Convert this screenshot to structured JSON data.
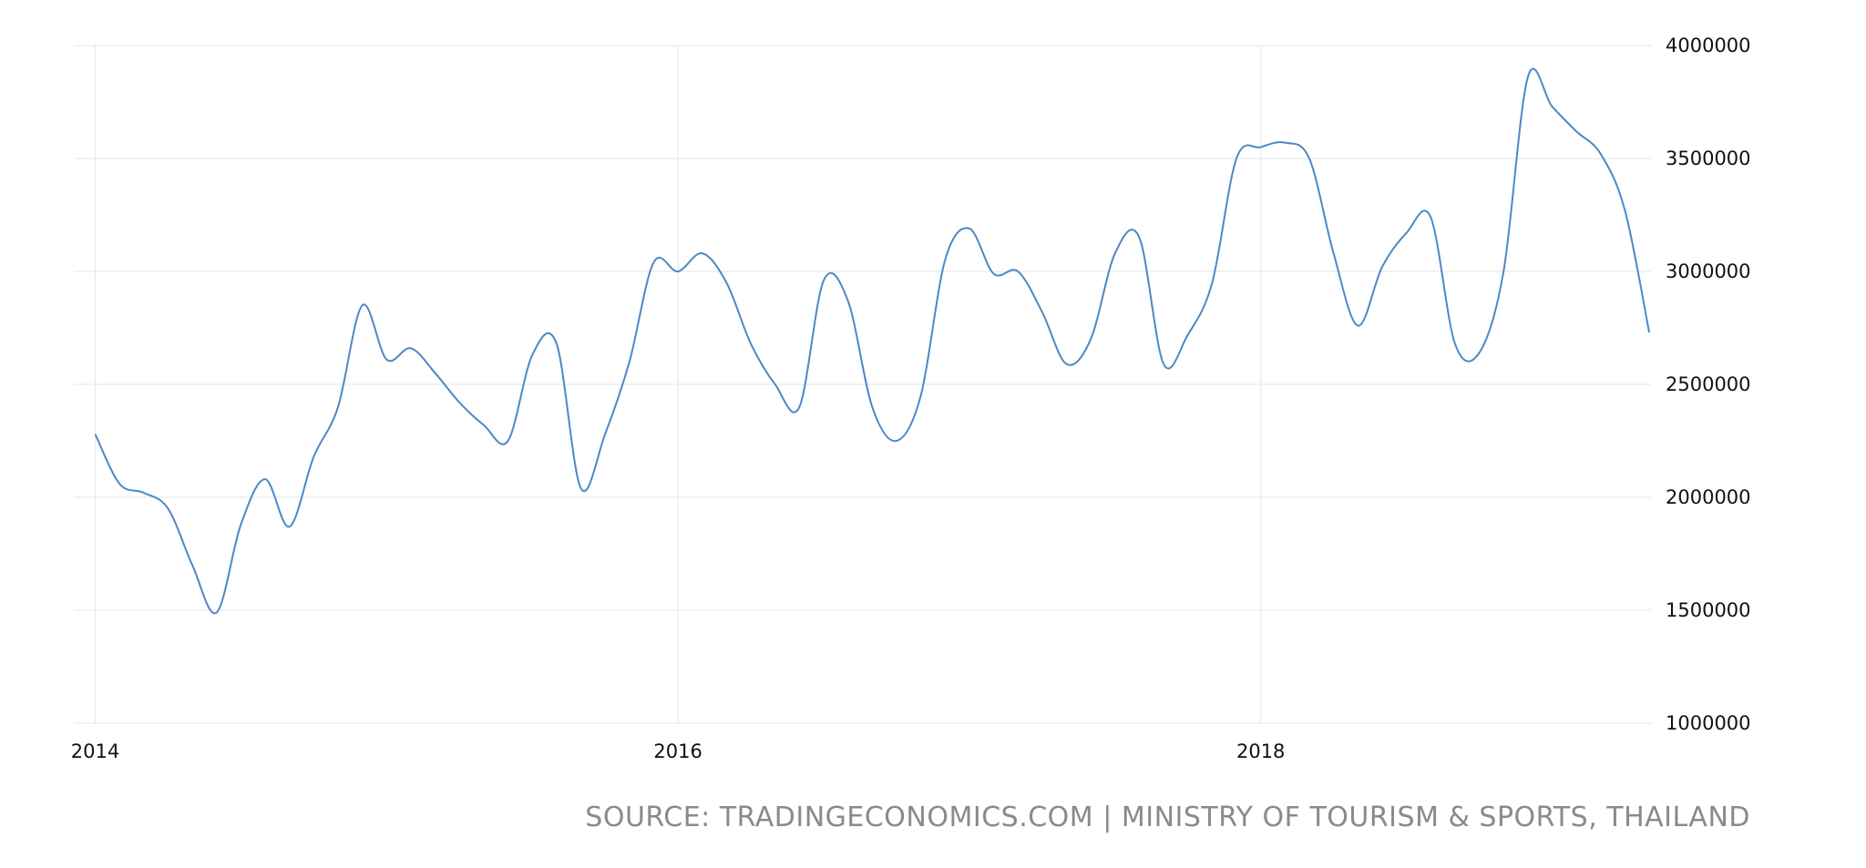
{
  "chart_data": {
    "type": "line",
    "title": "",
    "xlabel": "",
    "ylabel": "",
    "ylim": [
      1000000,
      4000000
    ],
    "yticks": [
      "1000000",
      "1500000",
      "2000000",
      "2500000",
      "3000000",
      "3500000",
      "4000000"
    ],
    "xticks": [
      "2014",
      "2016",
      "2018"
    ],
    "grid": true,
    "y_axis_side": "right",
    "line_color": "#4d88c4",
    "x": [
      "2014-01",
      "2014-02",
      "2014-03",
      "2014-04",
      "2014-05",
      "2014-06",
      "2014-07",
      "2014-08",
      "2014-09",
      "2014-10",
      "2014-11",
      "2014-12",
      "2015-01",
      "2015-02",
      "2015-03",
      "2015-04",
      "2015-05",
      "2015-06",
      "2015-07",
      "2015-08",
      "2015-09",
      "2015-10",
      "2015-11",
      "2015-12",
      "2016-01",
      "2016-02",
      "2016-03",
      "2016-04",
      "2016-05",
      "2016-06",
      "2016-07",
      "2016-08",
      "2016-09",
      "2016-10",
      "2016-11",
      "2016-12",
      "2017-01",
      "2017-02",
      "2017-03",
      "2017-04",
      "2017-05",
      "2017-06",
      "2017-07",
      "2017-08",
      "2017-09",
      "2017-10",
      "2017-11",
      "2017-12",
      "2018-01",
      "2018-02",
      "2018-03",
      "2018-04",
      "2018-05",
      "2018-06",
      "2018-07",
      "2018-08",
      "2018-09",
      "2018-10",
      "2018-11",
      "2018-12",
      "2019-01",
      "2019-02",
      "2019-03",
      "2019-04",
      "2019-05"
    ],
    "values": [
      2280000,
      2060000,
      2020000,
      1950000,
      1700000,
      1490000,
      1880000,
      2080000,
      1870000,
      2180000,
      2400000,
      2850000,
      2610000,
      2660000,
      2550000,
      2420000,
      2320000,
      2250000,
      2630000,
      2680000,
      2040000,
      2280000,
      2600000,
      3040000,
      3000000,
      3080000,
      2950000,
      2680000,
      2500000,
      2400000,
      2960000,
      2870000,
      2400000,
      2250000,
      2450000,
      3050000,
      3190000,
      2990000,
      3000000,
      2820000,
      2590000,
      2700000,
      3080000,
      3150000,
      2590000,
      2720000,
      2950000,
      3500000,
      3550000,
      3570000,
      3500000,
      3080000,
      2760000,
      3020000,
      3170000,
      3240000,
      2680000,
      2640000,
      3000000,
      3860000,
      3730000,
      3620000,
      3520000,
      3270000,
      2730000
    ]
  },
  "source": "SOURCE: TRADINGECONOMICS.COM | MINISTRY OF TOURISM & SPORTS, THAILAND"
}
